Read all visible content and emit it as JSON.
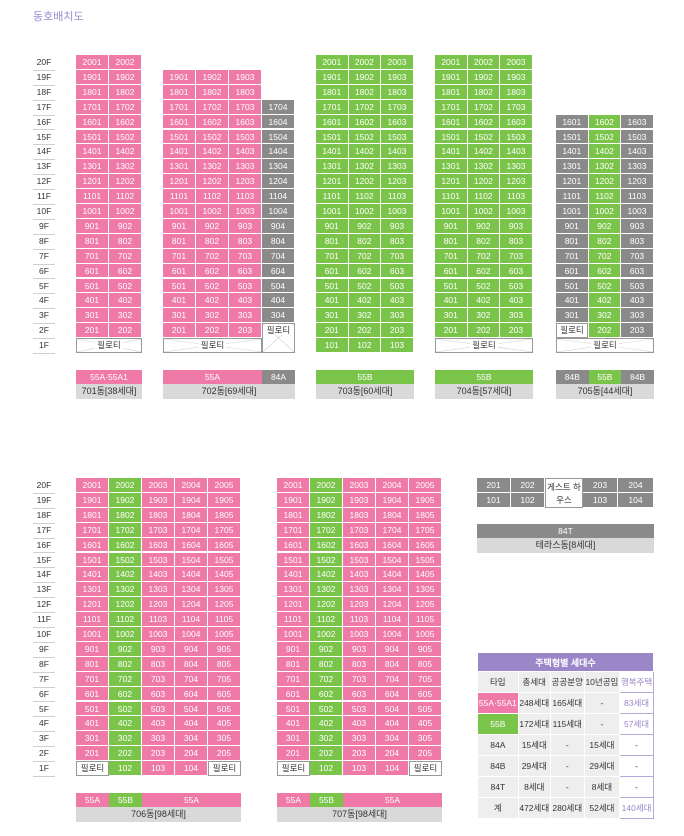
{
  "title": "동호배치도",
  "colors": {
    "pink": "#ef79a7",
    "green": "#7bc44a",
    "gray": "#8a8a8a",
    "purple": "#9b87c8"
  },
  "floors": [
    "20F",
    "19F",
    "18F",
    "17F",
    "16F",
    "15F",
    "14F",
    "13F",
    "12F",
    "11F",
    "10F",
    "9F",
    "8F",
    "7F",
    "6F",
    "5F",
    "4F",
    "3F",
    "2F",
    "1F"
  ],
  "piloti_label": "필로티",
  "b701": {
    "type_labels": [
      "55A·55A1"
    ],
    "name": "701동[38세대]"
  },
  "b702": {
    "type_labels": [
      "55A",
      "84A"
    ],
    "name": "702동[69세대]"
  },
  "b703": {
    "type_labels": [
      "55B"
    ],
    "name": "703동[60세대]"
  },
  "b704": {
    "type_labels": [
      "55B"
    ],
    "name": "704동[57세대]"
  },
  "b705": {
    "type_labels": [
      "84B",
      "55B",
      "84B"
    ],
    "name": "705동[44세대]"
  },
  "b706": {
    "type_labels": [
      "55A",
      "55B",
      "55A"
    ],
    "name": "706동[98세대]"
  },
  "b707": {
    "type_labels": [
      "55A",
      "55B",
      "55A"
    ],
    "name": "707동[98세대]"
  },
  "terrace": {
    "row2": [
      "201",
      "202",
      "203",
      "204"
    ],
    "row1": [
      "101",
      "102",
      "103",
      "104"
    ],
    "guesthouse": "게스트 하우스",
    "type_label": "84T",
    "name": "테라스동[8세대]"
  },
  "summary": {
    "title": "주택형별 세대수",
    "headers": [
      "타입",
      "총세대",
      "공공분양",
      "10년공임",
      "행복주택"
    ],
    "rows": [
      [
        "55A·55A1",
        "248세대",
        "165세대",
        "-",
        "83세대"
      ],
      [
        "55B",
        "172세대",
        "115세대",
        "-",
        "57세대"
      ],
      [
        "84A",
        "15세대",
        "-",
        "15세대",
        "-"
      ],
      [
        "84B",
        "29세대",
        "-",
        "29세대",
        "-"
      ],
      [
        "84T",
        "8세대",
        "-",
        "8세대",
        "-"
      ]
    ],
    "total": [
      "계",
      "472세대",
      "280세대",
      "52세대",
      "140세대"
    ]
  }
}
